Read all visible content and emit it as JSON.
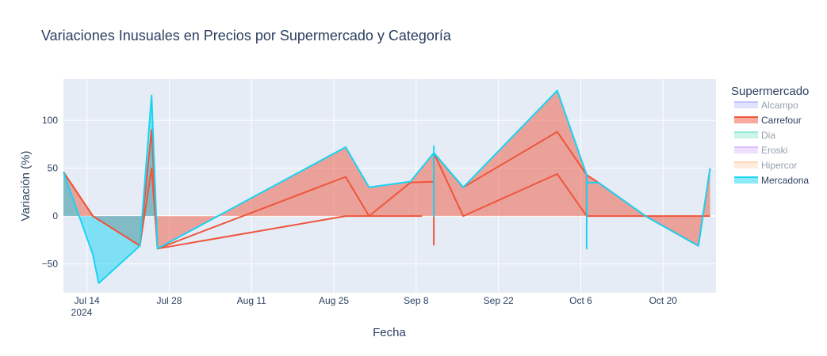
{
  "chart_data": {
    "type": "area",
    "title": "Variaciones Inusuales en Precios por Supermercado y Categoría",
    "xlabel": "Fecha",
    "ylabel": "Variación (%)",
    "x_range": [
      "2024-07-10",
      "2024-10-29"
    ],
    "ylim": [
      -80,
      143
    ],
    "y_ticks": [
      -50,
      0,
      50,
      100
    ],
    "y_tick_labels": [
      "−50",
      "0",
      "50",
      "100"
    ],
    "x_ticks": [
      "2024-07-14",
      "2024-07-28",
      "2024-08-11",
      "2024-08-25",
      "2024-09-08",
      "2024-09-22",
      "2024-10-06",
      "2024-10-20"
    ],
    "x_tick_labels": [
      "Jul 14",
      "Jul 28",
      "Aug 11",
      "Aug 25",
      "Sep 8",
      "Sep 22",
      "Oct 6",
      "Oct 20"
    ],
    "x_year_label": "2024",
    "grid": true,
    "legend": {
      "title": "Supermercado",
      "placement": "right",
      "items": [
        {
          "name": "Alcampo",
          "color": "#636efa",
          "visible": false
        },
        {
          "name": "Carrefour",
          "color": "#ef553b",
          "visible": true
        },
        {
          "name": "Dia",
          "color": "#00cc96",
          "visible": false
        },
        {
          "name": "Eroski",
          "color": "#ab63fa",
          "visible": false
        },
        {
          "name": "Hipercor",
          "color": "#ffa15a",
          "visible": false
        },
        {
          "name": "Mercadona",
          "color": "#19d3f3",
          "visible": true
        }
      ]
    },
    "series": [
      {
        "name": "Carrefour",
        "color": "#ef553b",
        "lines": [
          [
            [
              "2024-07-10",
              46
            ],
            [
              "2024-07-15",
              0
            ],
            [
              "2024-07-23",
              -31
            ],
            [
              "2024-07-25",
              50
            ],
            [
              "2024-07-26",
              -34
            ],
            [
              "2024-08-27",
              0
            ],
            [
              "2024-09-09",
              0
            ]
          ],
          [
            [
              "2024-07-10",
              46
            ],
            [
              "2024-07-15",
              0
            ],
            [
              "2024-07-23",
              -31
            ],
            [
              "2024-07-25",
              90
            ],
            [
              "2024-07-26",
              -34
            ],
            [
              "2024-08-27",
              41
            ],
            [
              "2024-08-31",
              0
            ],
            [
              "2024-09-07",
              35
            ],
            [
              "2024-09-11",
              36
            ],
            [
              "2024-09-11",
              -30
            ],
            [
              "2024-09-11",
              66
            ],
            [
              "2024-09-16",
              0
            ],
            [
              "2024-10-02",
              44
            ],
            [
              "2024-10-07",
              0
            ],
            [
              "2024-10-07",
              43
            ],
            [
              "2024-10-09",
              35
            ],
            [
              "2024-10-17",
              0
            ],
            [
              "2024-10-26",
              -31
            ],
            [
              "2024-10-28",
              50
            ]
          ],
          [
            [
              "2024-09-11",
              66
            ],
            [
              "2024-09-16",
              30
            ],
            [
              "2024-10-02",
              88
            ],
            [
              "2024-10-07",
              43
            ],
            [
              "2024-10-07",
              0
            ],
            [
              "2024-10-28",
              0
            ]
          ]
        ],
        "area": [
          [
            "2024-07-10",
            46
          ],
          [
            "2024-07-15",
            0
          ],
          [
            "2024-07-23",
            -31
          ],
          [
            "2024-07-25",
            90
          ],
          [
            "2024-07-26",
            -34
          ],
          [
            "2024-08-27",
            72
          ],
          [
            "2024-08-31",
            30
          ],
          [
            "2024-09-07",
            36
          ],
          [
            "2024-09-11",
            66
          ],
          [
            "2024-09-16",
            30
          ],
          [
            "2024-10-02",
            131
          ],
          [
            "2024-10-07",
            43
          ],
          [
            "2024-10-09",
            35
          ],
          [
            "2024-10-17",
            0
          ],
          [
            "2024-10-26",
            -31
          ],
          [
            "2024-10-28",
            50
          ]
        ]
      },
      {
        "name": "Mercadona",
        "color": "#19d3f3",
        "lines": [
          [
            [
              "2024-07-10",
              46
            ],
            [
              "2024-07-15",
              -40
            ],
            [
              "2024-07-16",
              -70
            ],
            [
              "2024-07-23",
              -31
            ],
            [
              "2024-07-25",
              126
            ],
            [
              "2024-07-26",
              -34
            ],
            [
              "2024-08-27",
              72
            ],
            [
              "2024-08-31",
              30
            ],
            [
              "2024-09-07",
              36
            ],
            [
              "2024-09-11",
              66
            ],
            [
              "2024-09-11",
              73
            ],
            [
              "2024-09-11",
              0
            ],
            [
              "2024-09-11",
              66
            ],
            [
              "2024-09-16",
              30
            ],
            [
              "2024-10-02",
              131
            ],
            [
              "2024-10-07",
              43
            ],
            [
              "2024-10-07",
              -34
            ],
            [
              "2024-10-07",
              35
            ],
            [
              "2024-10-09",
              35
            ],
            [
              "2024-10-17",
              0
            ],
            [
              "2024-10-26",
              -31
            ],
            [
              "2024-10-28",
              50
            ]
          ]
        ],
        "area": [
          [
            "2024-07-10",
            46
          ],
          [
            "2024-07-15",
            -40
          ],
          [
            "2024-07-16",
            -70
          ],
          [
            "2024-07-23",
            -31
          ],
          [
            "2024-07-25",
            126
          ],
          [
            "2024-07-26",
            -34
          ]
        ]
      }
    ]
  }
}
